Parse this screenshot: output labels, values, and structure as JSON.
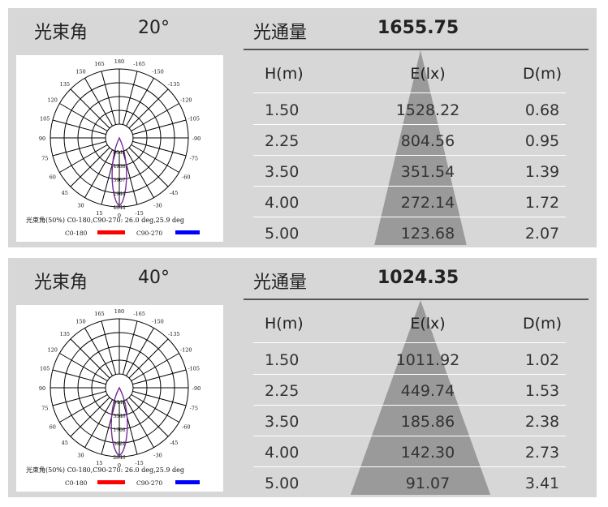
{
  "panels": [
    {
      "beam_label": "光束角",
      "beam_value": "20°",
      "flux_label": "光通量",
      "flux_value": "1655.75",
      "polar": {
        "angles": [
          "-165",
          "180",
          "165",
          "-150",
          "150",
          "-135",
          "135",
          "-120",
          "120",
          "-105",
          "105",
          "-90",
          "90",
          "-75",
          "75",
          "-60",
          "60",
          "-45",
          "45",
          "-30",
          "30",
          "-15",
          "0",
          "15"
        ],
        "rings": [
          "",
          "",
          "",
          "",
          ""
        ],
        "values": [
          "6041",
          "4938",
          "3907",
          "2944",
          "4844"
        ],
        "caption": "光束角(50%)   C0-180,C90-270: 26.0 deg,25.9 deg",
        "legend": [
          "C0-180",
          "C90-270"
        ],
        "colors": {
          "c0": "#ff0000",
          "c90": "#0000ff",
          "curve": "#7a2a9a"
        }
      },
      "table": {
        "headers": [
          "H(m)",
          "E(lx)",
          "D(m)"
        ],
        "rows": [
          [
            "1.50",
            "1528.22",
            "0.68"
          ],
          [
            "2.25",
            "804.56",
            "0.95"
          ],
          [
            "3.50",
            "351.54",
            "1.39"
          ],
          [
            "4.00",
            "272.14",
            "1.72"
          ],
          [
            "5.00",
            "123.68",
            "2.07"
          ]
        ]
      }
    },
    {
      "beam_label": "光束角",
      "beam_value": "40°",
      "flux_label": "光通量",
      "flux_value": "1024.35",
      "polar": {
        "angles": [
          "-165",
          "180",
          "165",
          "-150",
          "150",
          "-135",
          "135",
          "-120",
          "120",
          "-105",
          "105",
          "-90",
          "90",
          "-75",
          "75",
          "-60",
          "60",
          "-45",
          "45",
          "-30",
          "30",
          "-15",
          "0",
          "15"
        ],
        "rings": [
          "",
          "",
          "",
          "",
          ""
        ],
        "values": [
          "4441",
          "3546",
          "1708",
          "3622",
          "2846"
        ],
        "caption": "光束角(50%)   C0-180,C90-270: 26.0 deg,25.9 deg",
        "legend": [
          "C0-180",
          "C90-270"
        ],
        "colors": {
          "c0": "#ff0000",
          "c90": "#0000ff",
          "curve": "#7a2a9a"
        }
      },
      "table": {
        "headers": [
          "H(m)",
          "E(lx)",
          "D(m)"
        ],
        "rows": [
          [
            "1.50",
            "1011.92",
            "1.02"
          ],
          [
            "2.25",
            "449.74",
            "1.53"
          ],
          [
            "3.50",
            "185.86",
            "2.38"
          ],
          [
            "4.00",
            "142.30",
            "2.73"
          ],
          [
            "5.00",
            "91.07",
            "3.41"
          ]
        ]
      }
    }
  ],
  "colors": {
    "panel_bg": "#d7d7d7",
    "cone": "#9a9a9a",
    "rule": "#555555"
  }
}
